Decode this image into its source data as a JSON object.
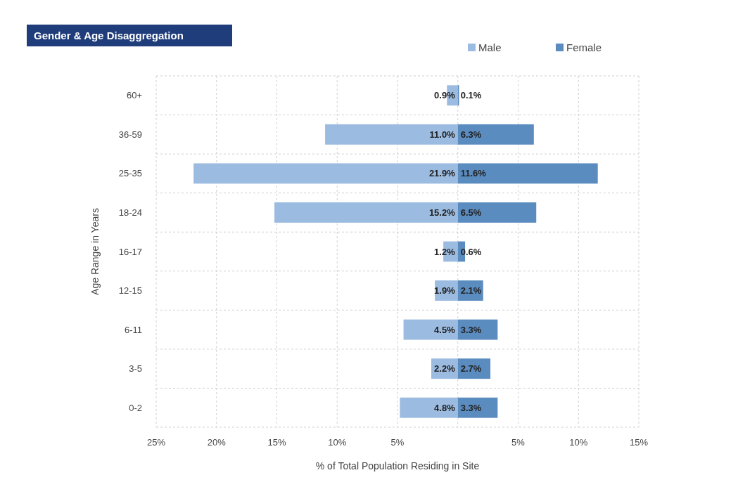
{
  "chart_data": {
    "type": "bar",
    "orientation": "horizontal",
    "stacked": true,
    "title": "Gender & Age Disaggregation",
    "xlabel": "% of Total Population Residing in Site",
    "ylabel": "Age Range in Years",
    "categories": [
      "60+",
      "36-59",
      "25-35",
      "18-24",
      "16-17",
      "12-15",
      "6-11",
      "3-5",
      "0-2"
    ],
    "series": [
      {
        "name": "Male",
        "color": "#9bbbe0",
        "values": [
          -0.9,
          -11.0,
          -21.9,
          -15.2,
          -1.2,
          -1.9,
          -4.5,
          -2.2,
          -4.8
        ]
      },
      {
        "name": "Female",
        "color": "#5b8cc0",
        "values": [
          0.1,
          6.3,
          11.6,
          6.5,
          0.6,
          2.1,
          3.3,
          2.7,
          3.3
        ],
        "value_labels": [
          "0.1%",
          "6.3%",
          "11.6%",
          "6.5%",
          "0.6%",
          "2.1%",
          "3.3%",
          "2.7%",
          "3.3%"
        ]
      }
    ],
    "xlim": [
      -25,
      15
    ],
    "xticks": [
      {
        "value": -25,
        "label": "25%"
      },
      {
        "value": -20,
        "label": "20%"
      },
      {
        "value": -15,
        "label": "15%"
      },
      {
        "value": -10,
        "label": "10%"
      },
      {
        "value": -5,
        "label": "5%"
      },
      {
        "value": 0,
        "label": null
      },
      {
        "value": 5,
        "label": "5%"
      },
      {
        "value": 10,
        "label": "10%"
      },
      {
        "value": 15,
        "label": "15%"
      }
    ],
    "annotations": [
      "0.9%",
      "11.0%",
      "21.9%",
      "15.2%",
      "1.2%",
      "1.9%",
      "4.5%",
      "2.2%",
      "4.8%"
    ],
    "grid": true,
    "legend": "top right"
  }
}
